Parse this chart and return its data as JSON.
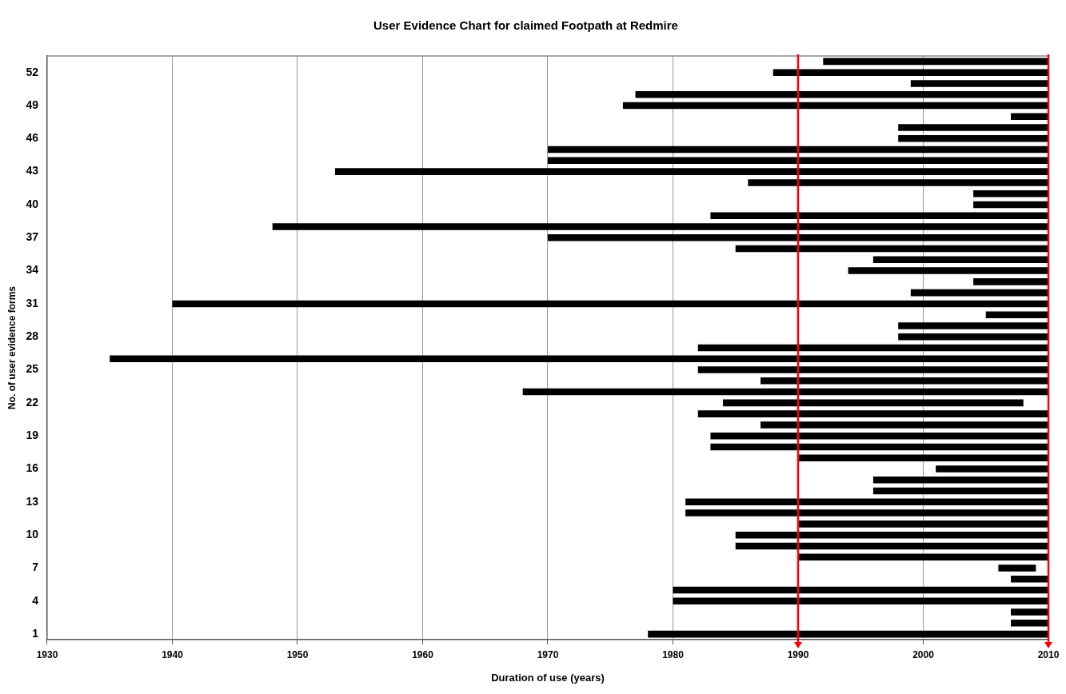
{
  "chart_data": {
    "type": "bar",
    "orientation": "horizontal",
    "title": "User Evidence Chart for claimed Footpath at Redmire",
    "xlabel": "Duration of use (years)",
    "ylabel": "No. of user evidence forms",
    "categories": [
      null,
      "52",
      null,
      null,
      "49",
      null,
      null,
      "46",
      null,
      null,
      "43",
      null,
      null,
      "40",
      null,
      null,
      "37",
      null,
      null,
      "34",
      null,
      null,
      "31",
      null,
      null,
      "28",
      null,
      null,
      "25",
      null,
      null,
      "22",
      null,
      null,
      "19",
      null,
      null,
      "16",
      null,
      null,
      "13",
      null,
      null,
      "10",
      null,
      null,
      "7",
      null,
      null,
      "4",
      null,
      null,
      "1"
    ],
    "base": [
      1992,
      1988,
      1999,
      1977,
      1976,
      2007,
      1998,
      1998,
      1970,
      1970,
      1953,
      1986,
      2004,
      2004,
      1983,
      1948,
      1970,
      1985,
      1996,
      1994,
      2004,
      1999,
      1940,
      2005,
      1998,
      1998,
      1982,
      1935,
      1982,
      1987,
      1968,
      1984,
      1982,
      1987,
      1983,
      1983,
      1990,
      2001,
      1996,
      1996,
      1981,
      1981,
      1990,
      1985,
      1985,
      1990,
      2006,
      2007,
      1980,
      1980,
      2007,
      2007,
      1978
    ],
    "values": [
      18,
      22,
      11,
      33,
      34,
      3,
      12,
      12,
      40,
      40,
      57,
      24,
      6,
      6,
      27,
      62,
      40,
      25,
      14,
      16,
      6,
      11,
      70,
      5,
      12,
      12,
      28,
      75,
      28,
      23,
      42,
      24,
      28,
      23,
      27,
      27,
      20,
      9,
      14,
      14,
      29,
      29,
      20,
      25,
      25,
      20,
      3,
      3,
      30,
      30,
      3,
      3,
      32
    ],
    "color": "#000000",
    "xlim": [
      1930,
      2010
    ],
    "xticks": [
      1930,
      1940,
      1950,
      1960,
      1970,
      1980,
      1990,
      2000,
      2010
    ],
    "grid": "x",
    "ref_lines": [
      {
        "axis": "x",
        "value": 1990,
        "color": "#ff0000"
      },
      {
        "axis": "x",
        "value": 2010,
        "color": "#ff0000"
      }
    ]
  }
}
